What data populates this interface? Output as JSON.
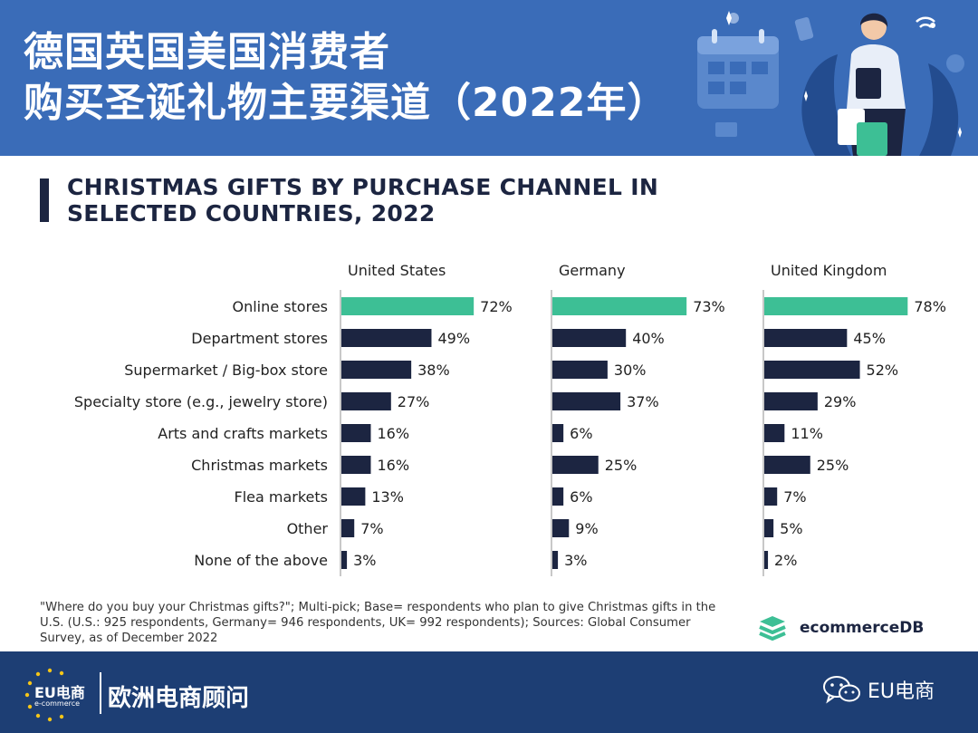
{
  "header": {
    "title_line1": "德国英国美国消费者",
    "title_line2": "购买圣诞礼物主要渠道（2022年）",
    "background_color": "#3a6cb8"
  },
  "chart_heading": {
    "line1": "CHRISTMAS GIFTS BY PURCHASE CHANNEL IN",
    "line2": "SELECTED COUNTRIES, 2022"
  },
  "chart_data": {
    "type": "bar",
    "orientation": "horizontal",
    "title": "CHRISTMAS GIFTS BY PURCHASE CHANNEL IN SELECTED COUNTRIES, 2022",
    "unit": "%",
    "categories": [
      "Online stores",
      "Department stores",
      "Supermarket / Big-box store",
      "Specialty store (e.g., jewelry store)",
      "Arts and crafts markets",
      "Christmas markets",
      "Flea markets",
      "Other",
      "None of the above"
    ],
    "series": [
      {
        "name": "United States",
        "values": [
          72,
          49,
          38,
          27,
          16,
          16,
          13,
          7,
          3
        ]
      },
      {
        "name": "Germany",
        "values": [
          73,
          40,
          30,
          37,
          6,
          25,
          6,
          9,
          3
        ]
      },
      {
        "name": "United Kingdom",
        "values": [
          78,
          45,
          52,
          29,
          11,
          25,
          7,
          5,
          2
        ]
      }
    ],
    "colors": {
      "highlight": "#3dbf95",
      "default": "#1c2541",
      "axis": "#c8c8c8"
    },
    "highlight_category": "Online stores"
  },
  "footnote": "\"Where do you buy your Christmas gifts?\"; Multi-pick; Base= respondents who plan to give Christmas gifts in the U.S. (U.S.: 925 respondents, Germany= 946 respondents, UK= 992 respondents); Sources: Global Consumer Survey, as of December 2022",
  "brand": {
    "name": "ecommerceDB",
    "icon": "layers-icon",
    "color": "#3dbf95"
  },
  "footer": {
    "logo_text": "EU电商",
    "logo_sub": "e-commerce",
    "company": "欧洲电商顾问",
    "wechat_label": "EU电商",
    "wechat_icon": "wechat-icon",
    "background_color": "#1d3e74"
  }
}
